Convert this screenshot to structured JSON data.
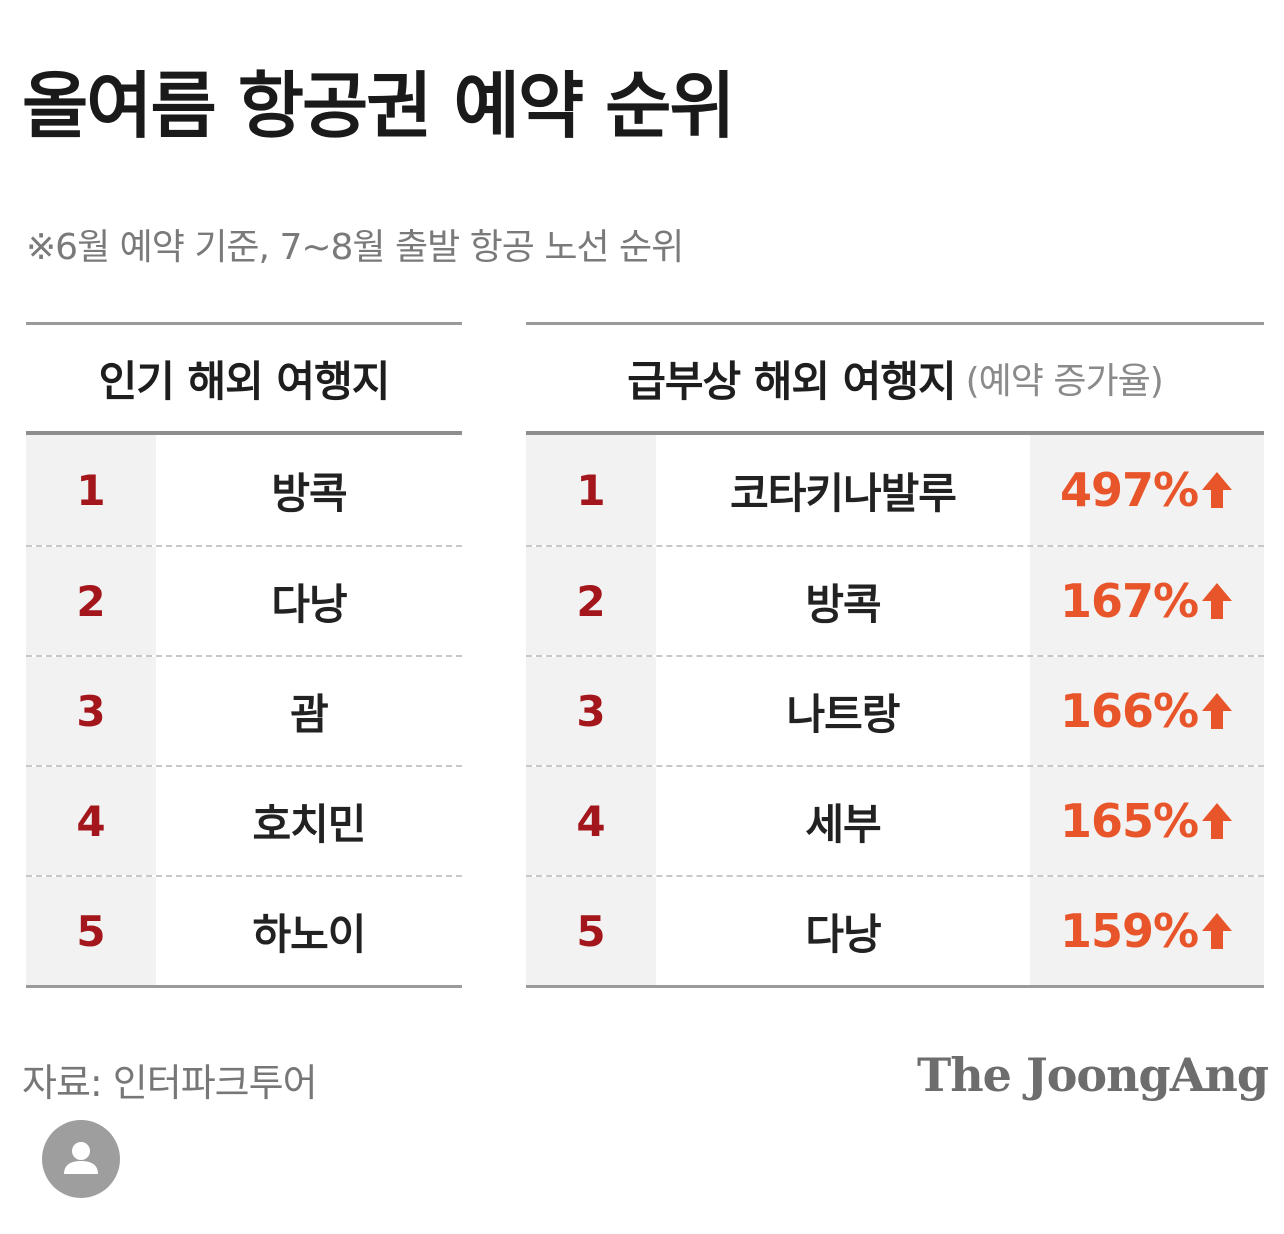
{
  "title": "올여름 항공권 예약 순위",
  "subtitle": "※6월 예약 기준, 7~8월 출발 항공 노선 순위",
  "source": "자료: 인터파크투어",
  "brand": "The JoongAng",
  "colors": {
    "rank": "#a3161b",
    "percent": "#e8552a",
    "shade": "#f2f2f2"
  },
  "icons": {
    "up_arrow": "arrow-up-icon",
    "avatar": "person-icon"
  },
  "chart_data": [
    {
      "type": "table",
      "title": "인기 해외 여행지",
      "columns": [
        "rank",
        "destination"
      ],
      "rows": [
        {
          "rank": "1",
          "destination": "방콕"
        },
        {
          "rank": "2",
          "destination": "다낭"
        },
        {
          "rank": "3",
          "destination": "괌"
        },
        {
          "rank": "4",
          "destination": "호치민"
        },
        {
          "rank": "5",
          "destination": "하노이"
        }
      ]
    },
    {
      "type": "table",
      "title": "급부상 해외 여행지",
      "note": "(예약 증가율)",
      "columns": [
        "rank",
        "destination",
        "increase"
      ],
      "rows": [
        {
          "rank": "1",
          "destination": "코타키나발루",
          "increase": "497%",
          "increase_value": 497
        },
        {
          "rank": "2",
          "destination": "방콕",
          "increase": "167%",
          "increase_value": 167
        },
        {
          "rank": "3",
          "destination": "나트랑",
          "increase": "166%",
          "increase_value": 166
        },
        {
          "rank": "4",
          "destination": "세부",
          "increase": "165%",
          "increase_value": 165
        },
        {
          "rank": "5",
          "destination": "다낭",
          "increase": "159%",
          "increase_value": 159
        }
      ]
    }
  ]
}
